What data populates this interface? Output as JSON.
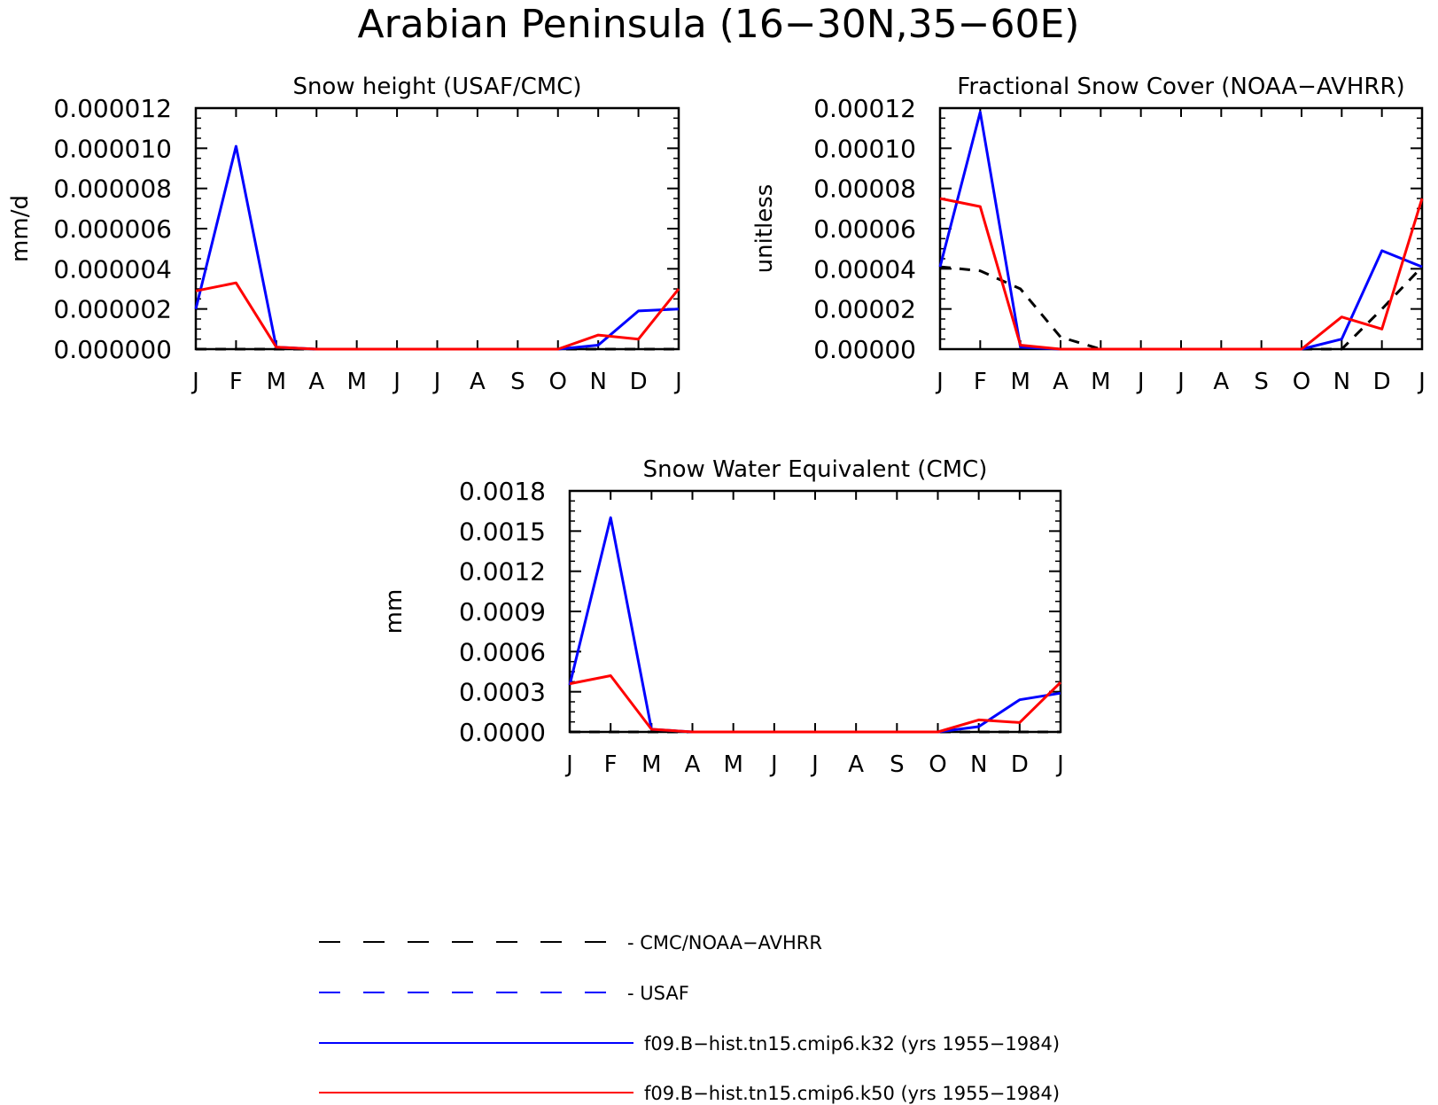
{
  "figure_title": "Arabian Peninsula (16−30N,35−60E)",
  "colors": {
    "obs": "#000000",
    "usaf": "#0000ff",
    "k32": "#0000ff",
    "k50": "#ff0000"
  },
  "legend": [
    {
      "key": "obs",
      "label": "CMC/NOAA−AVHRR",
      "style": "dashed",
      "prefix": "- "
    },
    {
      "key": "usaf",
      "label": "USAF",
      "style": "dashed",
      "prefix": "- "
    },
    {
      "key": "k32",
      "label": "f09.B−hist.tn15.cmip6.k32 (yrs 1955−1984)",
      "style": "solid",
      "prefix": ""
    },
    {
      "key": "k50",
      "label": "f09.B−hist.tn15.cmip6.k50 (yrs 1955−1984)",
      "style": "solid",
      "prefix": ""
    }
  ],
  "chart_data": [
    {
      "type": "line",
      "title": "Snow height (USAF/CMC)",
      "ylabel": "mm/d",
      "xlabel": "",
      "categories": [
        "J",
        "F",
        "M",
        "A",
        "M",
        "J",
        "J",
        "A",
        "S",
        "O",
        "N",
        "D",
        "J"
      ],
      "ylim": [
        0,
        1.2e-05
      ],
      "yticks": [
        "0.000000",
        "0.000002",
        "0.000004",
        "0.000006",
        "0.000008",
        "0.000010",
        "0.000012"
      ],
      "ytick_values": [
        0,
        2e-06,
        4e-06,
        6e-06,
        8e-06,
        1e-05,
        1.2e-05
      ],
      "series": [
        {
          "key": "obs",
          "style": "dashed",
          "values": [
            0,
            0,
            0,
            0,
            0,
            0,
            0,
            0,
            0,
            0,
            0,
            0,
            0
          ]
        },
        {
          "key": "k32",
          "style": "solid",
          "values": [
            2e-06,
            1.01e-05,
            1e-07,
            0,
            0,
            0,
            0,
            0,
            0,
            0,
            2e-07,
            1.9e-06,
            2e-06
          ]
        },
        {
          "key": "k50",
          "style": "solid",
          "values": [
            2.9e-06,
            3.3e-06,
            1e-07,
            0,
            0,
            0,
            0,
            0,
            0,
            0,
            7e-07,
            5e-07,
            3e-06
          ]
        }
      ]
    },
    {
      "type": "line",
      "title": "Fractional Snow Cover (NOAA−AVHRR)",
      "ylabel": "unitless",
      "xlabel": "",
      "categories": [
        "J",
        "F",
        "M",
        "A",
        "M",
        "J",
        "J",
        "A",
        "S",
        "O",
        "N",
        "D",
        "J"
      ],
      "ylim": [
        0,
        0.00012
      ],
      "yticks": [
        "0.00000",
        "0.00002",
        "0.00004",
        "0.00006",
        "0.00008",
        "0.00010",
        "0.00012"
      ],
      "ytick_values": [
        0,
        2e-05,
        4e-05,
        6e-05,
        8e-05,
        0.0001,
        0.00012
      ],
      "series": [
        {
          "key": "obs",
          "style": "dashed",
          "values": [
            4.1e-05,
            3.9e-05,
            3e-05,
            6e-06,
            0,
            0,
            0,
            0,
            0,
            0,
            0,
            2e-05,
            4.1e-05
          ]
        },
        {
          "key": "k32",
          "style": "solid",
          "values": [
            4.1e-05,
            0.000118,
            1e-06,
            0,
            0,
            0,
            0,
            0,
            0,
            0,
            5e-06,
            4.9e-05,
            4.1e-05
          ]
        },
        {
          "key": "k50",
          "style": "solid",
          "values": [
            7.5e-05,
            7.1e-05,
            2e-06,
            0,
            0,
            0,
            0,
            0,
            0,
            0,
            1.6e-05,
            1e-05,
            7.5e-05
          ]
        }
      ]
    },
    {
      "type": "line",
      "title": "Snow Water Equivalent (CMC)",
      "ylabel": "mm",
      "xlabel": "",
      "categories": [
        "J",
        "F",
        "M",
        "A",
        "M",
        "J",
        "J",
        "A",
        "S",
        "O",
        "N",
        "D",
        "J"
      ],
      "ylim": [
        0,
        0.0018
      ],
      "yticks": [
        "0.0000",
        "0.0003",
        "0.0006",
        "0.0009",
        "0.0012",
        "0.0015",
        "0.0018"
      ],
      "ytick_values": [
        0,
        0.0003,
        0.0006,
        0.0009,
        0.0012,
        0.0015,
        0.0018
      ],
      "series": [
        {
          "key": "obs",
          "style": "dashed",
          "values": [
            0,
            0,
            0,
            0,
            0,
            0,
            0,
            0,
            0,
            0,
            0,
            0,
            0
          ]
        },
        {
          "key": "k32",
          "style": "solid",
          "values": [
            0.00035,
            0.0016,
            2e-05,
            0,
            0,
            0,
            0,
            0,
            0,
            0,
            4e-05,
            0.00024,
            0.00029
          ]
        },
        {
          "key": "k50",
          "style": "solid",
          "values": [
            0.00036,
            0.00042,
            2e-05,
            0,
            0,
            0,
            0,
            0,
            0,
            0,
            9e-05,
            7e-05,
            0.00037
          ]
        }
      ]
    }
  ]
}
